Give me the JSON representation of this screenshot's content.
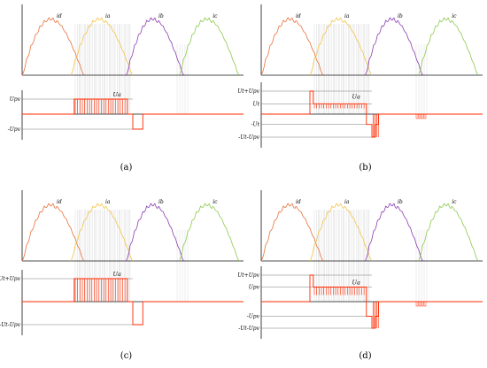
{
  "colors": {
    "id": "#e8703a",
    "ia": "#f2c347",
    "ib": "#8a3bb0",
    "ic": "#8cc94c",
    "ua": "#ff2a00",
    "axis": "#111111",
    "guide": "#c9c9c9",
    "ref": "#555555"
  },
  "panels": [
    {
      "caption": "(a)",
      "current_labels": [
        "id",
        "ia",
        "ib",
        "ic"
      ],
      "voltage_label": "Ua",
      "level_labels": [
        {
          "text": "Upv",
          "level": 1
        },
        {
          "text": "-Upv",
          "level": -1
        }
      ],
      "waveform": [
        {
          "t": 0.0,
          "v": 0
        },
        {
          "t": 0.235,
          "v": 0
        },
        {
          "t": 0.235,
          "v": 1
        },
        {
          "t": 0.475,
          "v": 1
        },
        {
          "t": 0.475,
          "v": 0
        },
        {
          "t": 0.5,
          "v": 0
        },
        {
          "t": 0.5,
          "v": -1
        },
        {
          "t": 0.545,
          "v": -1
        },
        {
          "t": 0.545,
          "v": 0
        },
        {
          "t": 1.0,
          "v": 0
        }
      ]
    },
    {
      "caption": "(b)",
      "current_labels": [
        "id",
        "ia",
        "ib",
        "ic"
      ],
      "voltage_label": "Ua",
      "level_labels": [
        {
          "text": "Ut+Upv",
          "level": 1
        },
        {
          "text": "Ut",
          "level": 0.45
        },
        {
          "text": "-Ut",
          "level": -0.45
        },
        {
          "text": "-Ut-Upv",
          "level": -1
        }
      ],
      "waveform": [
        {
          "t": 0.0,
          "v": 0
        },
        {
          "t": 0.22,
          "v": 0
        },
        {
          "t": 0.22,
          "v": 1
        },
        {
          "t": 0.235,
          "v": 1
        },
        {
          "t": 0.235,
          "v": 0.45
        },
        {
          "t": 0.475,
          "v": 0.45
        },
        {
          "t": 0.475,
          "v": -0.45
        },
        {
          "t": 0.5,
          "v": -0.45
        },
        {
          "t": 0.5,
          "v": -1
        },
        {
          "t": 0.515,
          "v": -1
        },
        {
          "t": 0.515,
          "v": -0.45
        },
        {
          "t": 0.53,
          "v": -0.45
        },
        {
          "t": 0.53,
          "v": 0
        },
        {
          "t": 1.0,
          "v": 0
        }
      ]
    },
    {
      "caption": "(c)",
      "current_labels": [
        "id",
        "ia",
        "ib",
        "ic"
      ],
      "voltage_label": "Ua",
      "level_labels": [
        {
          "text": "Ut+Upv",
          "level": 1
        },
        {
          "text": "-Ut-Upv",
          "level": -1
        }
      ],
      "waveform": [
        {
          "t": 0.0,
          "v": 0
        },
        {
          "t": 0.235,
          "v": 0
        },
        {
          "t": 0.235,
          "v": 1
        },
        {
          "t": 0.475,
          "v": 1
        },
        {
          "t": 0.475,
          "v": 0
        },
        {
          "t": 0.5,
          "v": 0
        },
        {
          "t": 0.5,
          "v": -1
        },
        {
          "t": 0.545,
          "v": -1
        },
        {
          "t": 0.545,
          "v": 0
        },
        {
          "t": 1.0,
          "v": 0
        }
      ]
    },
    {
      "caption": "(d)",
      "current_labels": [
        "id",
        "ia",
        "ib",
        "ic"
      ],
      "voltage_label": "Ua",
      "level_labels": [
        {
          "text": "Ut+Upv",
          "level": 1
        },
        {
          "text": "Upv",
          "level": 0.55
        },
        {
          "text": "-Upv",
          "level": -0.55
        },
        {
          "text": "-Ut-Upv",
          "level": -1
        }
      ],
      "waveform": [
        {
          "t": 0.0,
          "v": 0
        },
        {
          "t": 0.22,
          "v": 0
        },
        {
          "t": 0.22,
          "v": 1
        },
        {
          "t": 0.235,
          "v": 1
        },
        {
          "t": 0.235,
          "v": 0.55
        },
        {
          "t": 0.475,
          "v": 0.55
        },
        {
          "t": 0.475,
          "v": -0.55
        },
        {
          "t": 0.5,
          "v": -0.55
        },
        {
          "t": 0.5,
          "v": -1
        },
        {
          "t": 0.515,
          "v": -1
        },
        {
          "t": 0.515,
          "v": -0.55
        },
        {
          "t": 0.53,
          "v": -0.55
        },
        {
          "t": 0.53,
          "v": 0
        },
        {
          "t": 1.0,
          "v": 0
        }
      ]
    }
  ]
}
